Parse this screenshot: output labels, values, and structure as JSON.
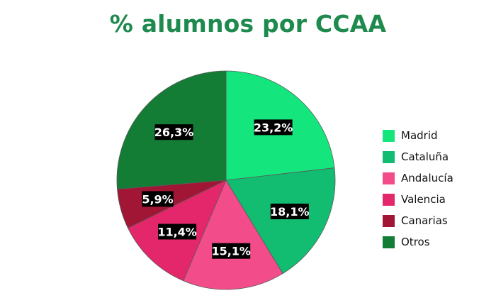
{
  "chart_data": {
    "type": "pie",
    "title": "% alumnos por CCAA",
    "start_angle_deg": 0,
    "direction": "clockwise",
    "legend_position": "right",
    "slices": [
      {
        "label": "Madrid",
        "value": 23.2,
        "display": "23,2%",
        "color": "#14e67d"
      },
      {
        "label": "Cataluña",
        "value": 18.1,
        "display": "18,1%",
        "color": "#12bc71"
      },
      {
        "label": "Andalucía",
        "value": 15.1,
        "display": "15,1%",
        "color": "#f34c8b"
      },
      {
        "label": "Valencia",
        "value": 11.4,
        "display": "11,4%",
        "color": "#e3276a"
      },
      {
        "label": "Canarias",
        "value": 5.9,
        "display": "5,9%",
        "color": "#a01634"
      },
      {
        "label": "Otros",
        "value": 26.3,
        "display": "26,3%",
        "color": "#137c35"
      }
    ]
  }
}
